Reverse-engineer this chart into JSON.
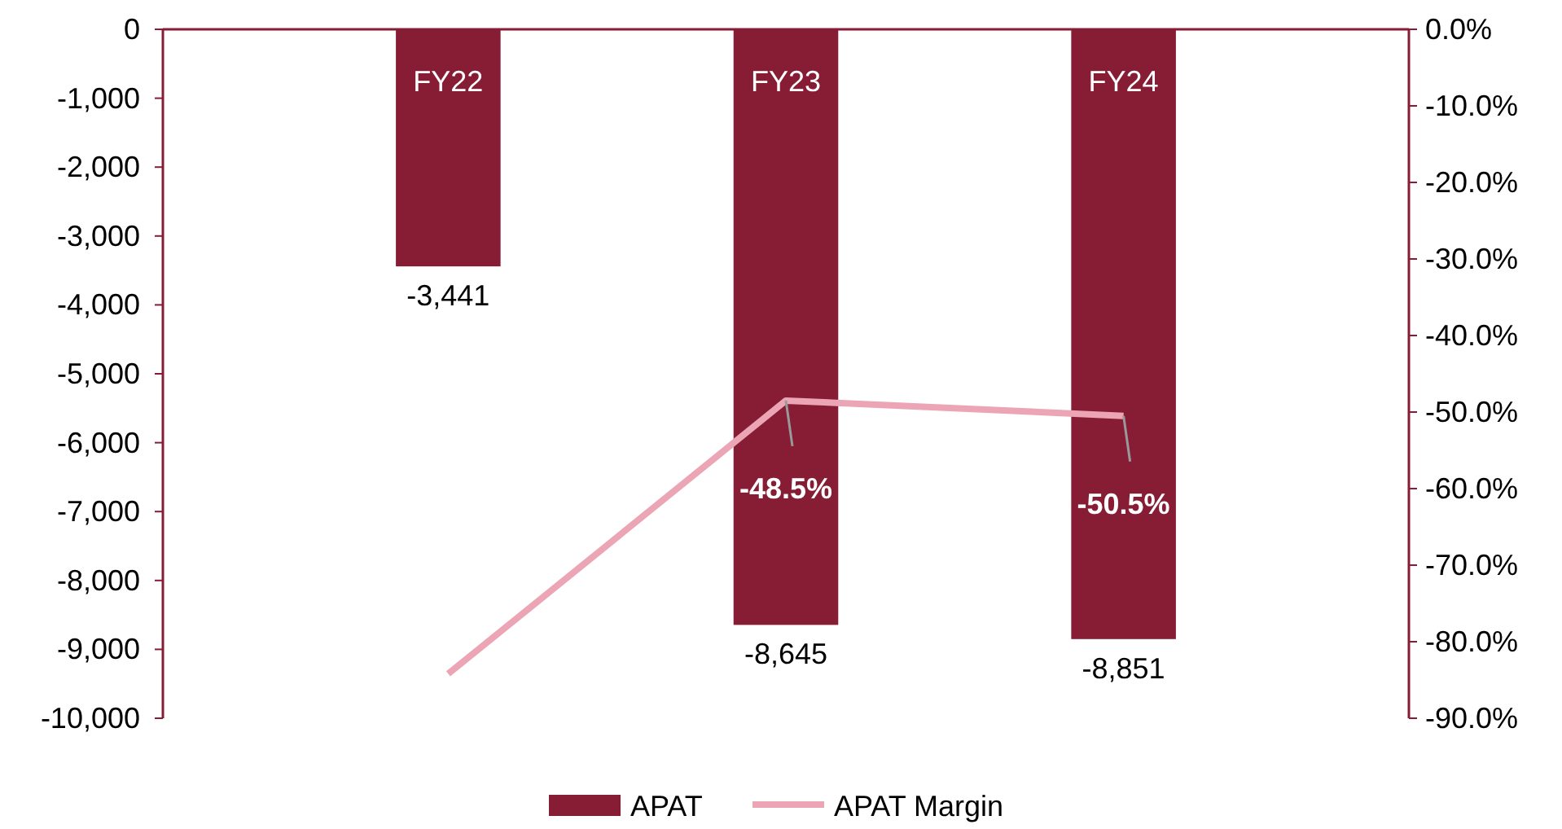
{
  "chart_data": {
    "type": "bar",
    "categories": [
      "FY22",
      "FY23",
      "FY24"
    ],
    "series": [
      {
        "name": "APAT",
        "color": "#861d35",
        "values": [
          -3441,
          -8645,
          -8851
        ],
        "value_labels": [
          "-3,441",
          "-8,645",
          "-8,851"
        ]
      },
      {
        "name": "APAT Margin",
        "type": "line",
        "axis": "y2",
        "color": "#eba5b5",
        "values": [
          -84.2,
          -48.5,
          -50.5
        ],
        "value_labels": [
          null,
          "-48.5%",
          "-50.5%"
        ]
      }
    ],
    "ylim": [
      -10000,
      0
    ],
    "yticks": [
      {
        "value": 0,
        "label": "0"
      },
      {
        "value": -1000,
        "label": "-1,000"
      },
      {
        "value": -2000,
        "label": "-2,000"
      },
      {
        "value": -3000,
        "label": "-3,000"
      },
      {
        "value": -4000,
        "label": "-4,000"
      },
      {
        "value": -5000,
        "label": "-5,000"
      },
      {
        "value": -6000,
        "label": "-6,000"
      },
      {
        "value": -7000,
        "label": "-7,000"
      },
      {
        "value": -8000,
        "label": "-8,000"
      },
      {
        "value": -9000,
        "label": "-9,000"
      },
      {
        "value": -10000,
        "label": "-10,000"
      }
    ],
    "y2lim": [
      -90,
      0
    ],
    "y2ticks": [
      {
        "value": 0,
        "label": "0.0%"
      },
      {
        "value": -10,
        "label": "-10.0%"
      },
      {
        "value": -20,
        "label": "-20.0%"
      },
      {
        "value": -30,
        "label": "-30.0%"
      },
      {
        "value": -40,
        "label": "-40.0%"
      },
      {
        "value": -50,
        "label": "-50.0%"
      },
      {
        "value": -60,
        "label": "-60.0%"
      },
      {
        "value": -70,
        "label": "-70.0%"
      },
      {
        "value": -80,
        "label": "-80.0%"
      },
      {
        "value": -90,
        "label": "-90.0%"
      }
    ],
    "grid": false,
    "legend": "bottom"
  }
}
